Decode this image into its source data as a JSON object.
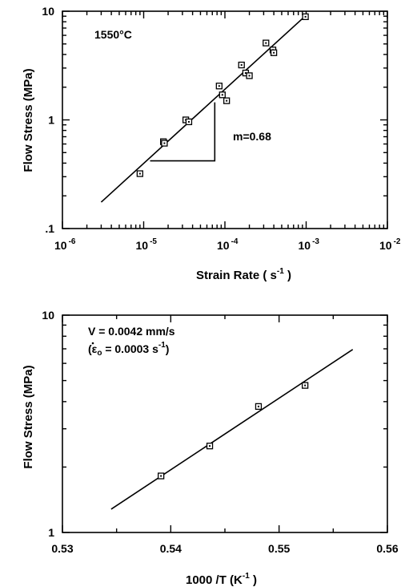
{
  "chart_data": [
    {
      "type": "scatter",
      "xscale": "log",
      "yscale": "log",
      "xlim": [
        1e-06,
        0.01
      ],
      "ylim": [
        0.1,
        10
      ],
      "xlabel": "Strain Rate ( s -1 )",
      "ylabel": "Flow Stress (MPa)",
      "xticks": [
        {
          "base": "10",
          "exp": "-6"
        },
        {
          "base": "10",
          "exp": "-5"
        },
        {
          "base": "10",
          "exp": "-4"
        },
        {
          "base": "10",
          "exp": "-3"
        },
        {
          "base": "10",
          "exp": "-2"
        }
      ],
      "yticks": [
        "10",
        "1",
        ".1"
      ],
      "annotations": [
        "1550°C",
        "m=0.68"
      ],
      "points": [
        {
          "x": 9e-06,
          "y": 0.32
        },
        {
          "x": 1.75e-05,
          "y": 0.63
        },
        {
          "x": 1.8e-05,
          "y": 0.61
        },
        {
          "x": 3.3e-05,
          "y": 1.0
        },
        {
          "x": 3.6e-05,
          "y": 0.96
        },
        {
          "x": 8.5e-05,
          "y": 2.05
        },
        {
          "x": 9.3e-05,
          "y": 1.7
        },
        {
          "x": 0.000105,
          "y": 1.5
        },
        {
          "x": 0.00016,
          "y": 3.2
        },
        {
          "x": 0.00018,
          "y": 2.7
        },
        {
          "x": 0.0002,
          "y": 2.55
        },
        {
          "x": 0.00032,
          "y": 5.1
        },
        {
          "x": 0.00039,
          "y": 4.4
        },
        {
          "x": 0.0004,
          "y": 4.15
        },
        {
          "x": 0.00098,
          "y": 8.9
        }
      ],
      "fit": {
        "x": [
          3e-06,
          0.001
        ],
        "y": [
          0.175,
          9.2
        ]
      },
      "slope_triangle": {
        "x": [
          1.2e-05,
          7.5e-05
        ],
        "y": [
          0.42,
          1.45
        ],
        "label": "m=0.68"
      }
    },
    {
      "type": "scatter",
      "xscale": "linear",
      "yscale": "log",
      "xlim": [
        0.53,
        0.56
      ],
      "ylim": [
        1,
        10
      ],
      "xlabel": "1000 /T (K -1 )",
      "ylabel": "Flow Stress (MPa)",
      "xticks": [
        "0.53",
        "0.54",
        "0.55",
        "0.56"
      ],
      "yticks": [
        "10",
        "1"
      ],
      "annotations": [
        "V = 0.0042 mm/s",
        "(ε₀ = 0.0003 s-1)"
      ],
      "points": [
        {
          "x": 0.5391,
          "y": 1.82
        },
        {
          "x": 0.5436,
          "y": 2.5
        },
        {
          "x": 0.5481,
          "y": 3.8
        },
        {
          "x": 0.5524,
          "y": 4.75
        }
      ],
      "fit": {
        "x": [
          0.5345,
          0.5568
        ],
        "y": [
          1.28,
          6.95
        ]
      }
    }
  ],
  "labels": {
    "top": {
      "ylabel": "Flow Stress (MPa)",
      "xlabel_main": "Strain Rate ( s",
      "xlabel_exp": "-1",
      "xlabel_tail": " )",
      "temp": "1550°C",
      "slope": "m=0.68"
    },
    "bottom": {
      "ylabel": "Flow Stress (MPa)",
      "xlabel_main": "1000 /T   (K",
      "xlabel_exp": "-1",
      "xlabel_tail": " )",
      "velocity": "V = 0.0042 mm/s",
      "rate_open": "(",
      "rate_symbol": "ε",
      "rate_sub": "o",
      "rate_value": " = 0.0003  s",
      "rate_exp": "-1",
      "rate_close": ")"
    }
  }
}
